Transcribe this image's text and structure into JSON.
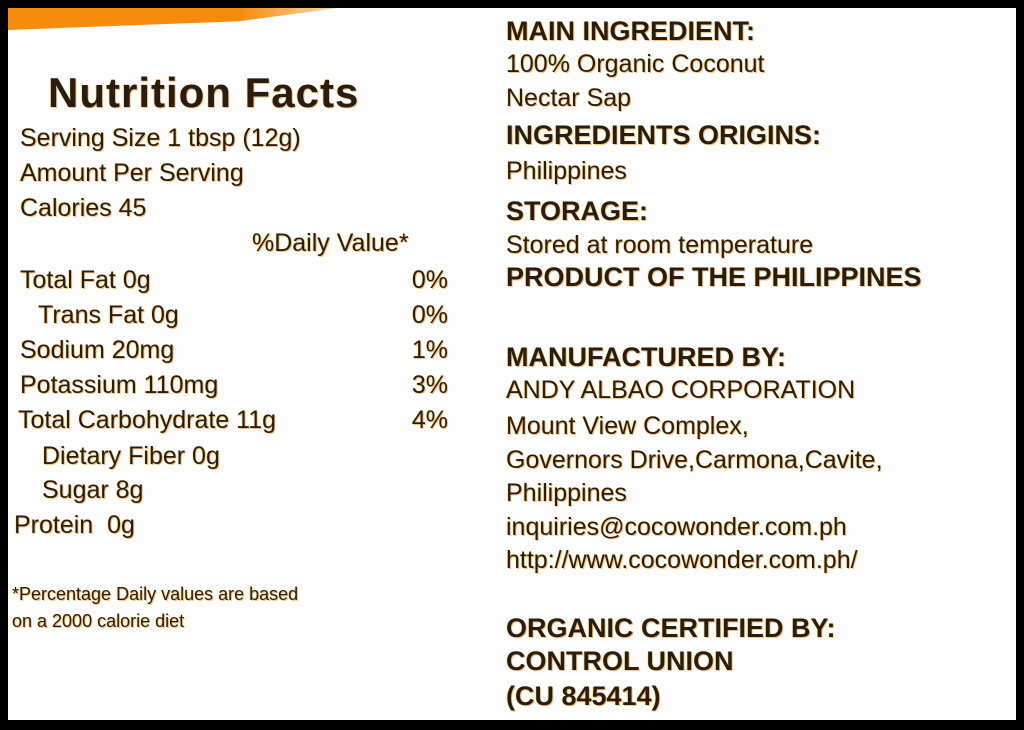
{
  "nutrition": {
    "title": "Nutrition Facts",
    "serving_size": "Serving Size 1 tbsp (12g)",
    "amount_per_serving": "Amount Per Serving",
    "calories": "Calories 45",
    "daily_value_header": "%Daily Value*",
    "rows": [
      {
        "label": "Total Fat 0g",
        "dv": "0%"
      },
      {
        "label": "Trans Fat 0g",
        "dv": "0%"
      },
      {
        "label": "Sodium 20mg",
        "dv": "1%"
      },
      {
        "label": "Potassium 110mg",
        "dv": "3%"
      },
      {
        "label": "Total Carbohydrate 11g",
        "dv": "4%"
      },
      {
        "label": "Dietary Fiber 0g",
        "dv": ""
      },
      {
        "label": "Sugar 8g",
        "dv": ""
      },
      {
        "label": "Protein  0g",
        "dv": ""
      }
    ],
    "footnote_1": "*Percentage Daily values are based",
    "footnote_2": "on a 2000 calorie diet"
  },
  "info": {
    "main_ingredient_heading": "MAIN INGREDIENT:",
    "main_ingredient_1": "100% Organic Coconut",
    "main_ingredient_2": "Nectar Sap",
    "origins_heading": "INGREDIENTS ORIGINS:",
    "origins": "Philippines",
    "storage_heading": "STORAGE:",
    "storage": "Stored at room temperature",
    "product_of": "PRODUCT OF THE PHILIPPINES",
    "manufacturer_heading": "MANUFACTURED BY:",
    "manufacturer": "ANDY ALBAO CORPORATION",
    "address_1": "Mount View Complex,",
    "address_2": "Governors Drive,Carmona,Cavite,",
    "address_3": "Philippines",
    "email": "inquiries@cocowonder.com.ph",
    "website": "http://www.cocowonder.com.ph/",
    "certified_heading": "ORGANIC CERTIFIED BY:",
    "certifier": "CONTROL UNION",
    "certifier_code": "(CU 845414)"
  },
  "colors": {
    "stripe": "#f78b0c",
    "text": "#2b1c12"
  }
}
